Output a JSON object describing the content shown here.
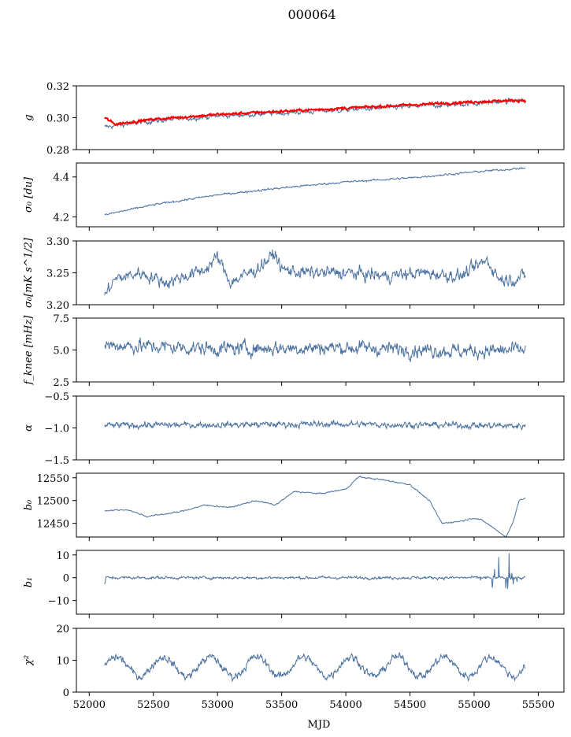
{
  "figure_title": "000064",
  "colors": {
    "series": "#4c72a0",
    "overlay": "#ff0000",
    "axes": "#000000"
  },
  "chart_data": {
    "type": "line",
    "xlabel": "MJD",
    "xlim": [
      51900,
      55700
    ],
    "xticks": [
      "52000",
      "52500",
      "53000",
      "53500",
      "54000",
      "54500",
      "55000",
      "55500"
    ],
    "xtick_values": [
      52000,
      52500,
      53000,
      53500,
      54000,
      54500,
      55000,
      55500
    ],
    "x_start": 52120,
    "x_end": 55400,
    "panels": [
      {
        "ylabel": "g",
        "ylim": [
          0.28,
          0.32
        ],
        "yticks": [
          "0.28",
          "0.30",
          "0.32"
        ],
        "ytick_values": [
          0.28,
          0.3,
          0.32
        ],
        "series": [
          {
            "x": [
              52120,
              52200,
              52500,
              53000,
              53500,
              54000,
              54500,
              55000,
              55400
            ],
            "y": [
              0.294,
              0.295,
              0.298,
              0.301,
              0.303,
              0.305,
              0.307,
              0.309,
              0.311
            ],
            "noise": 0.0012,
            "color": "#4c72a0"
          },
          {
            "x": [
              52120,
              52200,
              52500,
              53000,
              53500,
              54000,
              54500,
              55000,
              55400,
              55400,
              55500
            ],
            "y": [
              0.3,
              0.296,
              0.299,
              0.302,
              0.304,
              0.306,
              0.308,
              0.31,
              0.311,
              0.31,
              0.31
            ],
            "noise": 0.0006,
            "color": "#ff0000",
            "width": 2
          }
        ]
      },
      {
        "ylabel": "σ₀ [du]",
        "ylim": [
          4.15,
          4.47
        ],
        "yticks": [
          "4.2",
          "4.4"
        ],
        "ytick_values": [
          4.2,
          4.4
        ],
        "series": [
          {
            "x": [
              52120,
              52500,
              53000,
              53500,
              54000,
              54500,
              55000,
              55400
            ],
            "y": [
              4.21,
              4.26,
              4.31,
              4.345,
              4.375,
              4.395,
              4.425,
              4.445
            ],
            "noise": 0.004,
            "color": "#4c72a0"
          }
        ]
      },
      {
        "ylabel": "σ₀[mK s^1/2]",
        "ylim": [
          3.2,
          3.3
        ],
        "yticks": [
          "3.20",
          "3.25",
          "3.30"
        ],
        "ytick_values": [
          3.2,
          3.25,
          3.3
        ],
        "series": [
          {
            "x": [
              52120,
              52200,
              52400,
              52600,
              52900,
              53000,
              53100,
              53300,
              53450,
              53500,
              53700,
              54000,
              54300,
              54600,
              54900,
              55100,
              55200,
              55300,
              55400
            ],
            "y": [
              3.215,
              3.24,
              3.25,
              3.235,
              3.255,
              3.275,
              3.235,
              3.255,
              3.28,
              3.255,
              3.25,
              3.25,
              3.245,
              3.25,
              3.245,
              3.27,
              3.24,
              3.24,
              3.245
            ],
            "noise": 0.008,
            "color": "#4c72a0"
          }
        ]
      },
      {
        "ylabel": "f_knee [mHz]",
        "ylim": [
          2.5,
          7.5
        ],
        "yticks": [
          "2.5",
          "5.0",
          "7.5"
        ],
        "ytick_values": [
          2.5,
          5.0,
          7.5
        ],
        "series": [
          {
            "x": [
              52120,
              53000,
              54000,
              55000,
              55400
            ],
            "y": [
              5.4,
              5.1,
              5.2,
              4.9,
              5.0
            ],
            "noise": 0.45,
            "color": "#4c72a0"
          }
        ]
      },
      {
        "ylabel": "α",
        "ylim": [
          -1.5,
          -0.5
        ],
        "yticks": [
          "−1.5",
          "−1.0",
          "−0.5"
        ],
        "ytick_values": [
          -1.5,
          -1.0,
          -0.5
        ],
        "series": [
          {
            "x": [
              52120,
              53000,
              54000,
              55000,
              55400
            ],
            "y": [
              -0.96,
              -0.95,
              -0.94,
              -0.96,
              -0.97
            ],
            "noise": 0.04,
            "color": "#4c72a0"
          }
        ]
      },
      {
        "ylabel": "b₀",
        "ylim": [
          12420,
          12560
        ],
        "yticks": [
          "12450",
          "12500",
          "12550"
        ],
        "ytick_values": [
          12450,
          12500,
          12550
        ],
        "series": [
          {
            "x": [
              52120,
              52300,
              52450,
              52700,
              52900,
              53100,
              53300,
              53450,
              53600,
              53800,
              54000,
              54100,
              54300,
              54500,
              54650,
              54750,
              54900,
              55000,
              55050,
              55100,
              55150,
              55200,
              55250,
              55300,
              55350,
              55400
            ],
            "y": [
              12478,
              12480,
              12465,
              12475,
              12490,
              12485,
              12500,
              12490,
              12520,
              12515,
              12525,
              12552,
              12545,
              12535,
              12500,
              12450,
              12455,
              12462,
              12458,
              12450,
              12440,
              12430,
              12420,
              12450,
              12500,
              12505
            ],
            "noise": 1.2,
            "color": "#4c72a0"
          }
        ]
      },
      {
        "ylabel": "b₁",
        "ylim": [
          -16,
          12
        ],
        "yticks": [
          "−10",
          "0",
          "10"
        ],
        "ytick_values": [
          -10,
          0,
          10
        ],
        "series": [
          {
            "x": [
              52120,
              52130,
              52500,
              53000,
              53500,
              54000,
              54500,
              54900,
              55100,
              55400
            ],
            "y": [
              -3,
              0,
              0,
              0,
              0,
              0,
              0,
              0,
              0,
              0
            ],
            "noise": 0.5,
            "color": "#4c72a0"
          }
        ]
      },
      {
        "ylabel": "χ²",
        "ylim": [
          0,
          20
        ],
        "yticks": [
          "0",
          "10",
          "20"
        ],
        "ytick_values": [
          0,
          10,
          20
        ],
        "series": [
          {
            "x": [
              52120,
              55400
            ],
            "y": [
              8,
              8
            ],
            "noise": 1.0,
            "color": "#4c72a0",
            "periodic_amplitude": 3.0,
            "period_days": 365
          }
        ]
      }
    ]
  }
}
